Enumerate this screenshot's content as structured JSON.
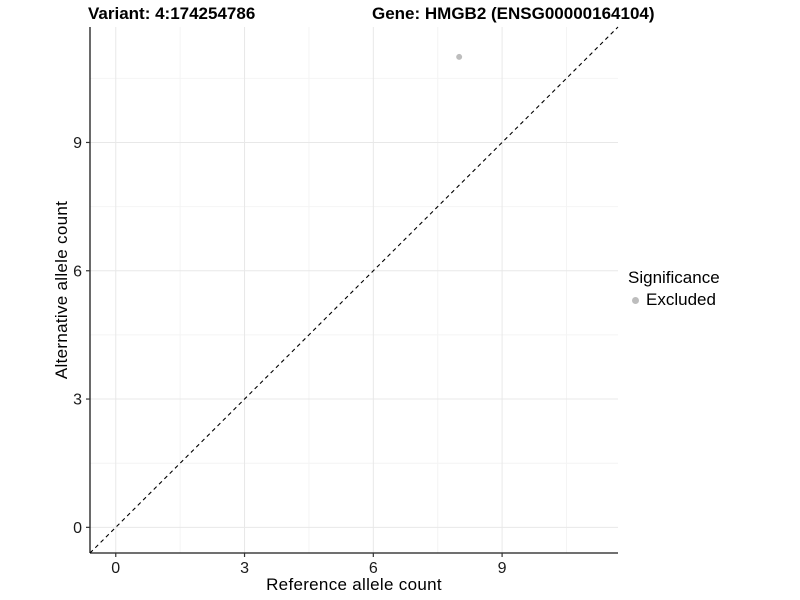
{
  "chart_data": {
    "type": "scatter",
    "title_left": "Variant: 4:174254786",
    "title_right": "Gene: HMGB2 (ENSG00000164104)",
    "xlabel": "Reference allele count",
    "ylabel": "Alternative allele count",
    "xlim": [
      -0.6,
      11.7
    ],
    "ylim": [
      -0.6,
      11.7
    ],
    "xticks": [
      0,
      3,
      6,
      9
    ],
    "yticks": [
      0,
      3,
      6,
      9
    ],
    "x_minor_ticks": [
      1.5,
      4.5,
      7.5,
      10.5
    ],
    "y_minor_ticks": [
      1.5,
      4.5,
      7.5,
      10.5
    ],
    "grid": "major+minor",
    "points": [
      {
        "x": 8,
        "y": 11,
        "significance": "Excluded"
      }
    ],
    "refline": {
      "slope": 1,
      "intercept": 0,
      "style": "dashed",
      "color": "#000000"
    },
    "legend": {
      "title": "Significance",
      "position": "right",
      "items": [
        {
          "label": "Excluded",
          "color": "#bdbdbd"
        }
      ]
    },
    "colors": {
      "background": "#ffffff",
      "grid_major": "#e8e8e8",
      "grid_minor": "#f4f4f4",
      "axis_line": "#1a1a1a",
      "tick_mark": "#333333",
      "tick_label": "#1a1a1a",
      "point": "#bdbdbd"
    }
  }
}
